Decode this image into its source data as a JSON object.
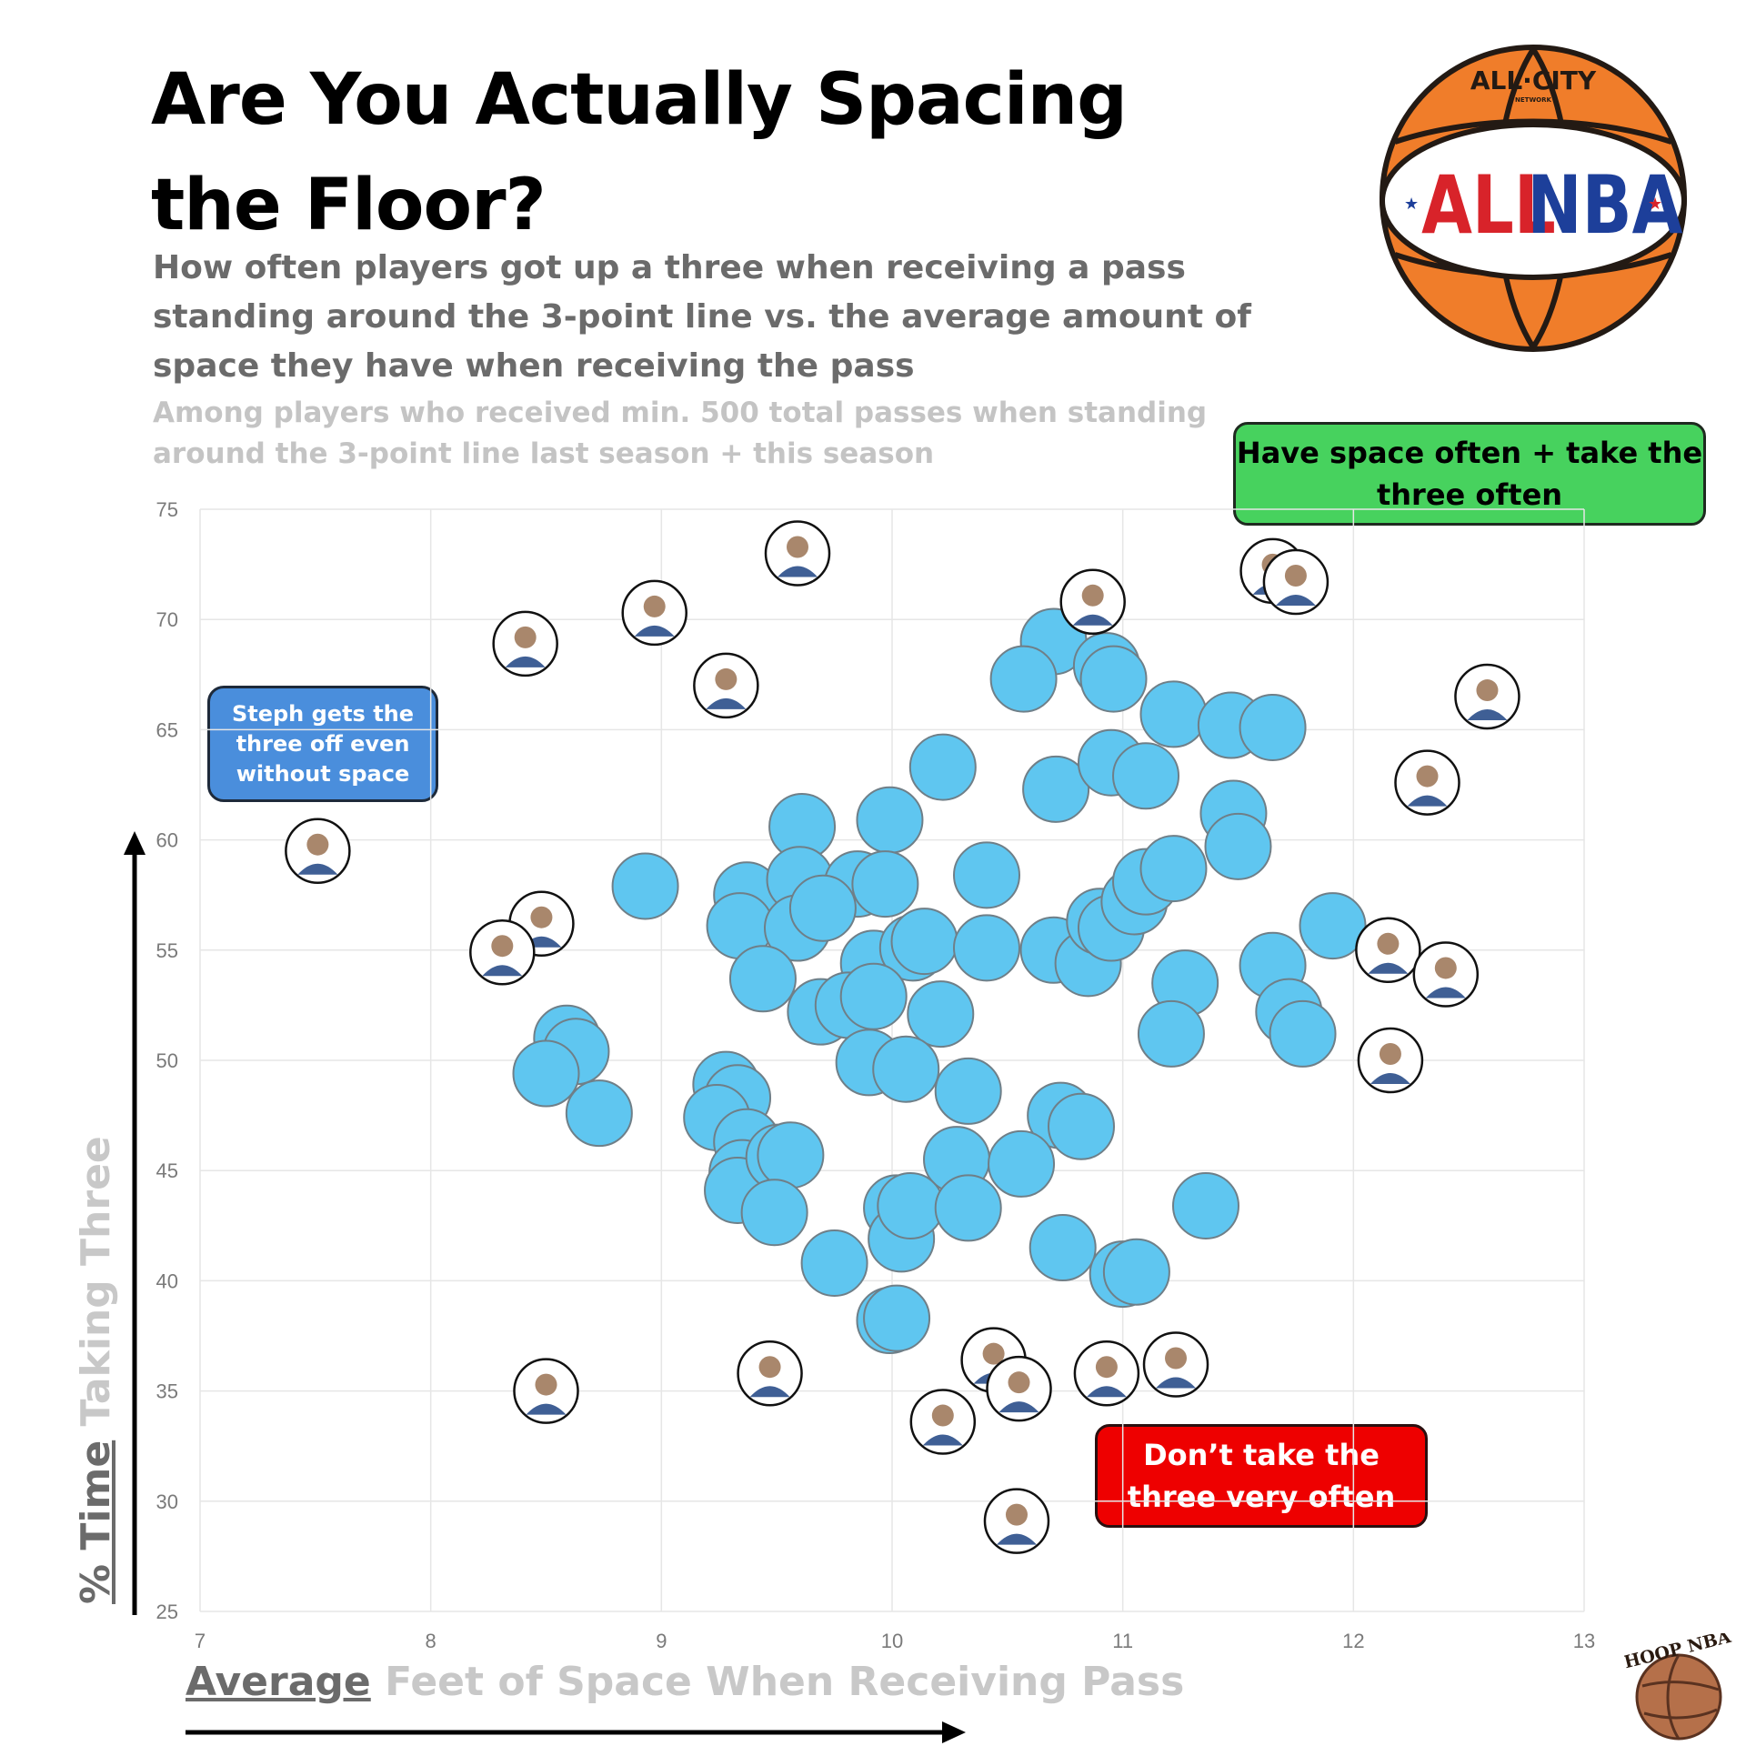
{
  "header": {
    "title": "Are You Actually Spacing the Floor?",
    "subtitle": "How often players got up a three when receiving a pass standing around the 3-point line vs. the average amount of space they have when receiving the pass",
    "note": "Among players who received min. 500 total passes when standing around the 3-point line last season + this season"
  },
  "logo": {
    "top_text": "ALL·CITY",
    "small_text": "NETWORK",
    "main_left": "ALL",
    "main_right": "NBA"
  },
  "callouts": {
    "top_right": "Have space often + take the three often",
    "left": "Steph gets the three off even without space",
    "bottom": "Don’t take the three very often"
  },
  "axis_titles": {
    "x_underlined": "Average",
    "x_rest": " Feet of Space When Receiving Pass",
    "y_underlined": "% Time",
    "y_rest": " Taking Three"
  },
  "brand": {
    "text": "HOOP NBA"
  },
  "colors": {
    "bubble": "#5fc6f0",
    "bubble_stroke": "#6f7f88",
    "green": "#47d25e",
    "blue": "#4a8edc",
    "red": "#ee0000"
  },
  "chart_data": {
    "type": "scatter",
    "title": "Are You Actually Spacing the Floor?",
    "xlabel": "Average Feet of Space When Receiving Pass",
    "ylabel": "% Time Taking Three",
    "xlim": [
      7,
      13
    ],
    "ylim": [
      25,
      75
    ],
    "xticks": [
      "7",
      "8",
      "9",
      "10",
      "11",
      "12",
      "13"
    ],
    "yticks": [
      "25",
      "30",
      "35",
      "40",
      "45",
      "50",
      "55",
      "60",
      "65",
      "70",
      "75"
    ],
    "grid": true,
    "series": [
      {
        "name": "Players",
        "points": [
          [
            10.7,
            69.0
          ],
          [
            10.57,
            67.3
          ],
          [
            10.93,
            67.9
          ],
          [
            10.96,
            67.3
          ],
          [
            11.22,
            65.7
          ],
          [
            11.47,
            65.2
          ],
          [
            11.65,
            65.1
          ],
          [
            10.22,
            63.3
          ],
          [
            10.71,
            62.3
          ],
          [
            10.95,
            63.5
          ],
          [
            11.1,
            62.9
          ],
          [
            11.48,
            61.2
          ],
          [
            11.5,
            59.7
          ],
          [
            9.61,
            60.6
          ],
          [
            9.99,
            60.9
          ],
          [
            8.93,
            57.9
          ],
          [
            9.37,
            57.5
          ],
          [
            9.6,
            58.2
          ],
          [
            9.85,
            58.0
          ],
          [
            9.97,
            58.0
          ],
          [
            10.41,
            58.4
          ],
          [
            9.34,
            56.1
          ],
          [
            9.59,
            56.0
          ],
          [
            9.7,
            56.9
          ],
          [
            9.92,
            54.4
          ],
          [
            10.09,
            55.1
          ],
          [
            10.14,
            55.4
          ],
          [
            10.41,
            55.1
          ],
          [
            10.7,
            55.0
          ],
          [
            10.85,
            54.4
          ],
          [
            10.9,
            56.3
          ],
          [
            10.95,
            56.0
          ],
          [
            11.05,
            57.2
          ],
          [
            11.1,
            58.1
          ],
          [
            11.22,
            58.7
          ],
          [
            11.91,
            56.1
          ],
          [
            9.44,
            53.7
          ],
          [
            9.69,
            52.2
          ],
          [
            9.81,
            52.5
          ],
          [
            9.92,
            52.9
          ],
          [
            10.21,
            52.1
          ],
          [
            11.27,
            53.5
          ],
          [
            11.21,
            51.2
          ],
          [
            11.65,
            54.3
          ],
          [
            11.72,
            52.2
          ],
          [
            11.78,
            51.2
          ],
          [
            8.59,
            51.0
          ],
          [
            8.63,
            50.4
          ],
          [
            8.5,
            49.4
          ],
          [
            8.73,
            47.6
          ],
          [
            9.28,
            48.9
          ],
          [
            9.33,
            48.3
          ],
          [
            9.24,
            47.4
          ],
          [
            9.37,
            46.3
          ],
          [
            9.35,
            44.9
          ],
          [
            9.33,
            44.1
          ],
          [
            9.51,
            45.6
          ],
          [
            9.56,
            45.7
          ],
          [
            9.49,
            43.1
          ],
          [
            9.9,
            49.9
          ],
          [
            10.06,
            49.6
          ],
          [
            10.33,
            48.6
          ],
          [
            10.73,
            47.5
          ],
          [
            10.82,
            47.0
          ],
          [
            10.28,
            45.5
          ],
          [
            10.56,
            45.3
          ],
          [
            10.02,
            43.3
          ],
          [
            10.04,
            41.9
          ],
          [
            10.08,
            43.4
          ],
          [
            10.33,
            43.3
          ],
          [
            9.75,
            40.8
          ],
          [
            10.74,
            41.5
          ],
          [
            11.0,
            40.3
          ],
          [
            11.06,
            40.4
          ],
          [
            11.36,
            43.4
          ],
          [
            9.99,
            38.2
          ],
          [
            10.02,
            38.3
          ]
        ]
      },
      {
        "name": "Highlighted players",
        "points": [
          [
            9.59,
            73.0
          ],
          [
            11.65,
            72.2
          ],
          [
            11.75,
            71.7
          ],
          [
            10.87,
            70.8
          ],
          [
            8.97,
            70.3
          ],
          [
            8.41,
            68.9
          ],
          [
            9.28,
            67.0
          ],
          [
            12.58,
            66.5
          ],
          [
            12.32,
            62.6
          ],
          [
            7.51,
            59.5
          ],
          [
            8.48,
            56.2
          ],
          [
            8.31,
            54.9
          ],
          [
            12.15,
            55.0
          ],
          [
            12.4,
            53.9
          ],
          [
            12.16,
            50.0
          ],
          [
            8.5,
            35.0
          ],
          [
            9.47,
            35.8
          ],
          [
            10.44,
            36.4
          ],
          [
            10.55,
            35.1
          ],
          [
            10.22,
            33.6
          ],
          [
            10.93,
            35.8
          ],
          [
            11.23,
            36.2
          ],
          [
            10.54,
            29.1
          ]
        ]
      }
    ]
  }
}
